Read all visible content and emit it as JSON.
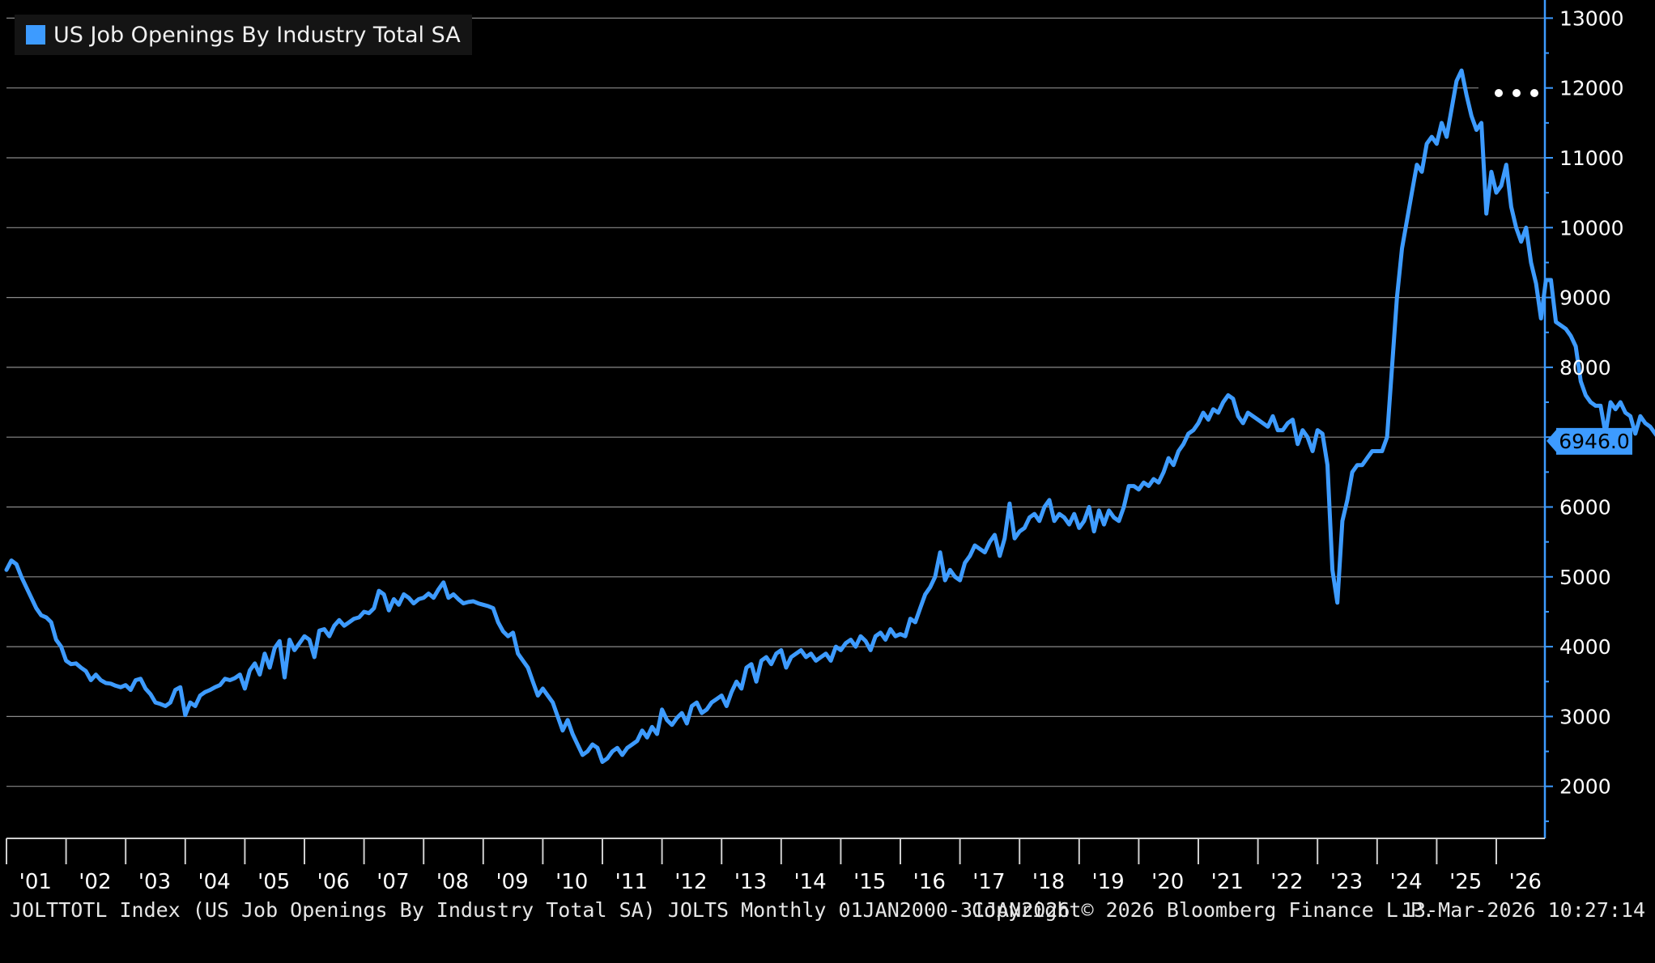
{
  "chart_data": {
    "type": "line",
    "title": "",
    "xlabel": "",
    "ylabel": "",
    "series": [
      {
        "name": "US Job Openings By Industry Total SA",
        "color": "#3d9bff",
        "x_start": "2000-12",
        "frequency": "monthly",
        "values": [
          5100,
          5234,
          5180,
          5000,
          4850,
          4700,
          4550,
          4450,
          4420,
          4350,
          4100,
          4000,
          3800,
          3750,
          3760,
          3700,
          3650,
          3520,
          3600,
          3520,
          3480,
          3470,
          3440,
          3420,
          3450,
          3380,
          3520,
          3540,
          3400,
          3320,
          3200,
          3180,
          3150,
          3200,
          3380,
          3420,
          3020,
          3200,
          3150,
          3300,
          3350,
          3380,
          3420,
          3450,
          3540,
          3520,
          3550,
          3600,
          3400,
          3660,
          3760,
          3600,
          3900,
          3700,
          3980,
          4080,
          3560,
          4100,
          3950,
          4050,
          4150,
          4100,
          3850,
          4230,
          4250,
          4150,
          4300,
          4380,
          4300,
          4350,
          4400,
          4420,
          4500,
          4480,
          4550,
          4800,
          4750,
          4520,
          4680,
          4600,
          4750,
          4700,
          4620,
          4680,
          4700,
          4760,
          4700,
          4820,
          4920,
          4700,
          4750,
          4680,
          4620,
          4640,
          4650,
          4620,
          4600,
          4580,
          4550,
          4350,
          4220,
          4150,
          4200,
          3900,
          3800,
          3700,
          3500,
          3300,
          3400,
          3300,
          3200,
          3000,
          2800,
          2950,
          2750,
          2600,
          2450,
          2500,
          2600,
          2550,
          2350,
          2400,
          2500,
          2550,
          2450,
          2550,
          2600,
          2650,
          2800,
          2700,
          2850,
          2750,
          3100,
          2950,
          2880,
          2980,
          3050,
          2900,
          3150,
          3200,
          3050,
          3100,
          3200,
          3250,
          3300,
          3150,
          3350,
          3500,
          3400,
          3700,
          3750,
          3500,
          3800,
          3850,
          3750,
          3900,
          3950,
          3700,
          3850,
          3900,
          3950,
          3850,
          3900,
          3800,
          3850,
          3900,
          3800,
          4000,
          3950,
          4050,
          4100,
          4000,
          4150,
          4080,
          3950,
          4150,
          4200,
          4100,
          4250,
          4150,
          4180,
          4150,
          4400,
          4350,
          4550,
          4750,
          4850,
          5000,
          5350,
          4950,
          5100,
          5000,
          4950,
          5200,
          5300,
          5450,
          5400,
          5350,
          5500,
          5600,
          5300,
          5550,
          6050,
          5550,
          5650,
          5700,
          5850,
          5900,
          5800,
          6000,
          6100,
          5800,
          5900,
          5850,
          5750,
          5900,
          5700,
          5800,
          6000,
          5650,
          5950,
          5750,
          5950,
          5850,
          5800,
          6000,
          6300,
          6300,
          6250,
          6350,
          6300,
          6400,
          6350,
          6500,
          6700,
          6600,
          6800,
          6900,
          7050,
          7100,
          7200,
          7350,
          7250,
          7400,
          7350,
          7500,
          7600,
          7550,
          7300,
          7200,
          7350,
          7300,
          7250,
          7200,
          7150,
          7300,
          7100,
          7100,
          7200,
          7250,
          6900,
          7100,
          7000,
          6800,
          7100,
          7050,
          6600,
          5100,
          4630,
          5800,
          6100,
          6500,
          6600,
          6600,
          6700,
          6800,
          6800,
          6800,
          7000,
          8000,
          9000,
          9700,
          10100,
          10500,
          10900,
          10800,
          11200,
          11300,
          11200,
          11500,
          11300,
          11700,
          12100,
          12250,
          11900,
          11600,
          11400,
          11500,
          10200,
          10800,
          10500,
          10600,
          10900,
          10300,
          10000,
          9800,
          10000,
          9500,
          9200,
          8700,
          9250,
          9250,
          8650,
          8600,
          8550,
          8450,
          8300,
          7800,
          7600,
          7500,
          7450,
          7450,
          7050,
          7500,
          7400,
          7500,
          7350,
          7300,
          7050,
          7300,
          7200,
          7150,
          7050,
          6950,
          7150,
          7200,
          6650,
          6946
        ]
      }
    ],
    "ylim": [
      1300,
      13100
    ],
    "y_ticks": [
      "2000",
      "3000",
      "4000",
      "5000",
      "6000",
      "7000",
      "8000",
      "9000",
      "10000",
      "11000",
      "12000",
      "13000"
    ],
    "y_tick_values": [
      2000,
      3000,
      4000,
      5000,
      6000,
      7000,
      8000,
      9000,
      10000,
      11000,
      12000,
      13000
    ],
    "x_tick_labels": [
      "'01",
      "'02",
      "'03",
      "'04",
      "'05",
      "'06",
      "'07",
      "'08",
      "'09",
      "'10",
      "'11",
      "'12",
      "'13",
      "'14",
      "'15",
      "'16",
      "'17",
      "'18",
      "'19",
      "'20",
      "'21",
      "'22",
      "'23",
      "'24",
      "'25",
      "'26"
    ],
    "last_value_label": "6946.0",
    "grid": true,
    "legend_position": "top-left",
    "y_axis_side": "right"
  },
  "legend": {
    "label": "US Job Openings By Industry Total SA",
    "color": "#3d9bff"
  },
  "more_icon": "ellipsis-icon",
  "footer": {
    "description": "JOLTTOTL Index (US Job Openings By Industry Total SA) JOLTS Monthly 01JAN2000-31JAN2026",
    "copyright": "Copyright© 2026 Bloomberg Finance L.P.",
    "timestamp": "13-Mar-2026 10:27:14"
  }
}
